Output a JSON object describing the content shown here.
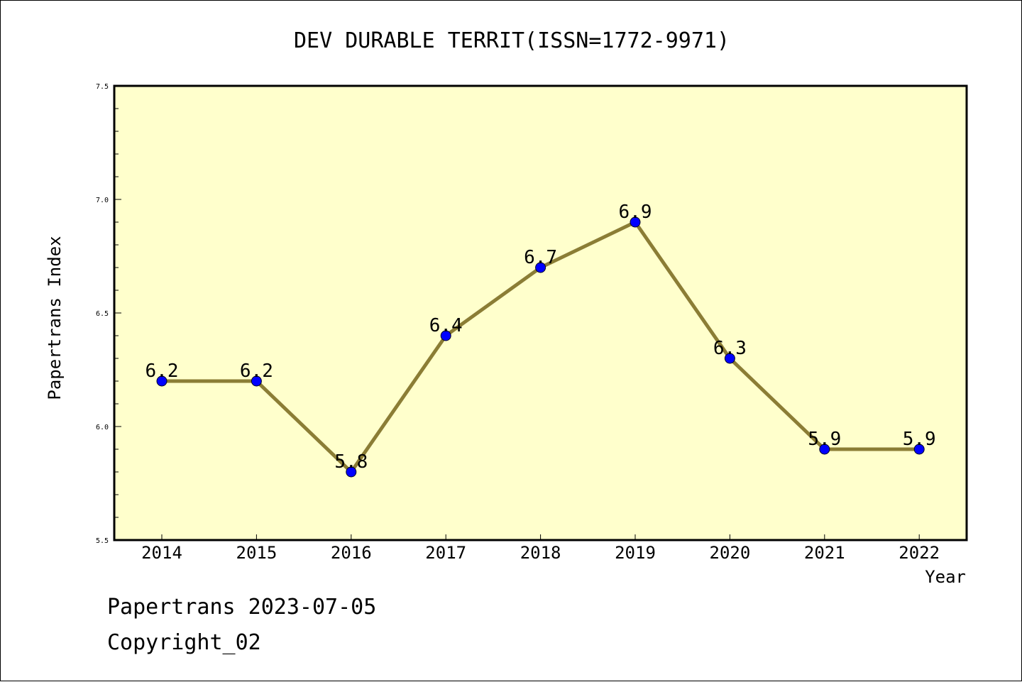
{
  "chart_data": {
    "type": "line",
    "title": "DEV DURABLE TERRIT(ISSN=1772-9971)",
    "xlabel": "Year",
    "ylabel": "Papertrans Index",
    "categories": [
      "2014",
      "2015",
      "2016",
      "2017",
      "2018",
      "2019",
      "2020",
      "2021",
      "2022"
    ],
    "series": [
      {
        "values": [
          6.2,
          6.2,
          5.8,
          6.4,
          6.7,
          6.9,
          6.3,
          5.9,
          5.9
        ]
      }
    ],
    "data_labels": [
      "6.2",
      "6.2",
      "5.8",
      "6.4",
      "6.7",
      "6.9",
      "6.3",
      "5.9",
      "5.9"
    ],
    "ylim": [
      5.5,
      7.5
    ],
    "yticks": [
      "5.5",
      "6.0",
      "6.5",
      "7.0",
      "7.5"
    ],
    "grid": false,
    "colors": {
      "line": "#8b7d35",
      "marker": "#0000ff",
      "plot_bg": "#ffffcc"
    }
  },
  "footer": {
    "line1": "Papertrans 2023-07-05",
    "line2": "Copyright_02"
  }
}
